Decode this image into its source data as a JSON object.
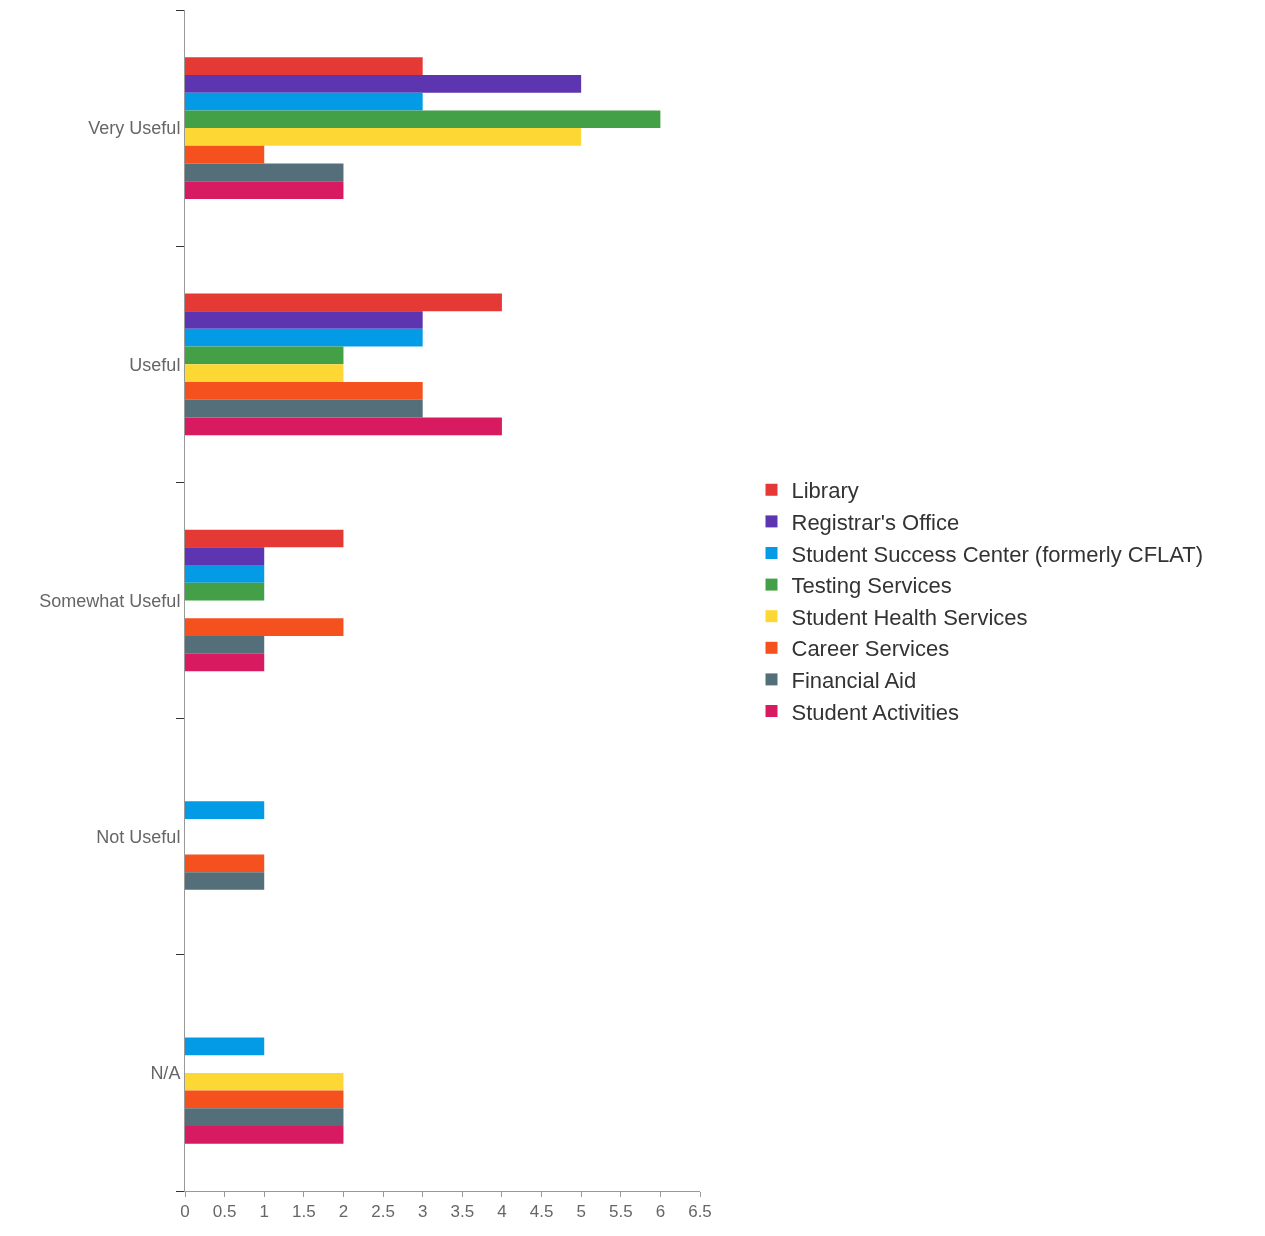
{
  "chart_data": {
    "type": "bar",
    "orientation": "horizontal",
    "categories": [
      "Very Useful",
      "Useful",
      "Somewhat Useful",
      "Not Useful",
      "N/A"
    ],
    "series": [
      {
        "name": "Library",
        "color": "#e53935",
        "values": [
          3,
          4,
          2,
          null,
          null
        ]
      },
      {
        "name": "Registrar's Office",
        "color": "#5e35b1",
        "values": [
          5,
          3,
          1,
          null,
          null
        ]
      },
      {
        "name": "Student Success Center (formerly CFLAT)",
        "color": "#039be5",
        "values": [
          3,
          3,
          1,
          1,
          1
        ]
      },
      {
        "name": "Testing Services",
        "color": "#43a047",
        "values": [
          6,
          2,
          1,
          null,
          null
        ]
      },
      {
        "name": "Student Health Services",
        "color": "#fdd835",
        "values": [
          5,
          2,
          null,
          null,
          2
        ]
      },
      {
        "name": "Career Services",
        "color": "#f4511e",
        "values": [
          1,
          3,
          2,
          1,
          2
        ]
      },
      {
        "name": "Financial Aid",
        "color": "#546e7a",
        "values": [
          2,
          3,
          1,
          1,
          2
        ]
      },
      {
        "name": "Student Activities",
        "color": "#d81b60",
        "values": [
          2,
          4,
          1,
          null,
          2
        ]
      }
    ],
    "xlim": [
      0,
      6.5
    ],
    "xticks": [
      0,
      0.5,
      1,
      1.5,
      2,
      2.5,
      3,
      3.5,
      4,
      4.5,
      5,
      5.5,
      6,
      6.5
    ],
    "legend": "right"
  }
}
